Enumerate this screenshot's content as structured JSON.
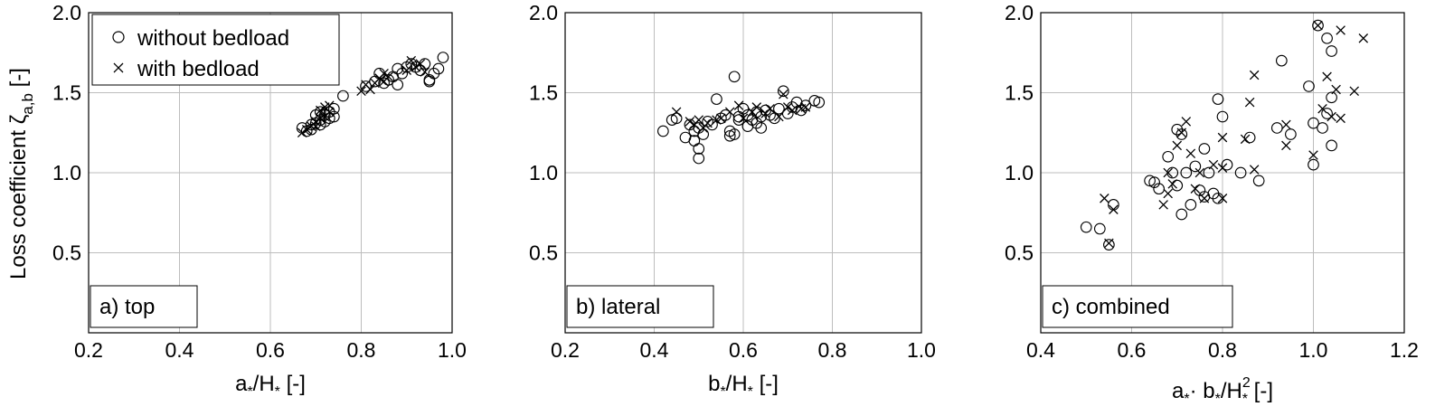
{
  "figure": {
    "ylabel": "Loss coefficient ζ",
    "ylabel_sub": "a,b",
    "ylabel_unit": " [-]",
    "legend": {
      "without_label": "without bedload",
      "with_label": "with bedload"
    }
  },
  "chart_data": [
    {
      "type": "scatter",
      "panel_label": "a) top",
      "xlabel": {
        "a": "a",
        "star1": "*",
        "slash": "/H",
        "star2": "*",
        "unit": " [-]"
      },
      "xlim": [
        0.2,
        1.0
      ],
      "ylim": [
        0,
        2.0
      ],
      "xticks": [
        "0.2",
        "0.4",
        "0.6",
        "0.8",
        "1.0"
      ],
      "yticks": [
        "0.5",
        "1.0",
        "1.5",
        "2.0"
      ],
      "grid": true,
      "legend": "top-left",
      "series": [
        {
          "name": "without bedload",
          "marker": "circle",
          "points": [
            [
              0.67,
              1.28
            ],
            [
              0.68,
              1.26
            ],
            [
              0.69,
              1.3
            ],
            [
              0.69,
              1.27
            ],
            [
              0.7,
              1.31
            ],
            [
              0.7,
              1.36
            ],
            [
              0.71,
              1.33
            ],
            [
              0.71,
              1.3
            ],
            [
              0.72,
              1.36
            ],
            [
              0.72,
              1.32
            ],
            [
              0.73,
              1.38
            ],
            [
              0.73,
              1.34
            ],
            [
              0.74,
              1.4
            ],
            [
              0.74,
              1.35
            ],
            [
              0.71,
              1.38
            ],
            [
              0.76,
              1.48
            ],
            [
              0.81,
              1.54
            ],
            [
              0.83,
              1.57
            ],
            [
              0.84,
              1.62
            ],
            [
              0.85,
              1.56
            ],
            [
              0.86,
              1.58
            ],
            [
              0.87,
              1.6
            ],
            [
              0.88,
              1.65
            ],
            [
              0.88,
              1.55
            ],
            [
              0.89,
              1.62
            ],
            [
              0.9,
              1.66
            ],
            [
              0.91,
              1.68
            ],
            [
              0.92,
              1.66
            ],
            [
              0.93,
              1.64
            ],
            [
              0.94,
              1.68
            ],
            [
              0.95,
              1.57
            ],
            [
              0.96,
              1.62
            ],
            [
              0.97,
              1.65
            ],
            [
              0.98,
              1.72
            ],
            [
              0.95,
              1.58
            ]
          ]
        },
        {
          "name": "with bedload",
          "marker": "x",
          "points": [
            [
              0.67,
              1.25
            ],
            [
              0.68,
              1.27
            ],
            [
              0.69,
              1.29
            ],
            [
              0.7,
              1.32
            ],
            [
              0.7,
              1.29
            ],
            [
              0.71,
              1.34
            ],
            [
              0.71,
              1.39
            ],
            [
              0.72,
              1.35
            ],
            [
              0.72,
              1.41
            ],
            [
              0.73,
              1.38
            ],
            [
              0.73,
              1.42
            ],
            [
              0.8,
              1.51
            ],
            [
              0.81,
              1.55
            ],
            [
              0.82,
              1.52
            ],
            [
              0.83,
              1.56
            ],
            [
              0.84,
              1.59
            ],
            [
              0.85,
              1.62
            ],
            [
              0.85,
              1.57
            ],
            [
              0.86,
              1.6
            ],
            [
              0.9,
              1.64
            ],
            [
              0.91,
              1.7
            ],
            [
              0.92,
              1.66
            ],
            [
              0.93,
              1.68
            ],
            [
              0.94,
              1.63
            ]
          ]
        }
      ]
    },
    {
      "type": "scatter",
      "panel_label": "b) lateral",
      "xlabel": {
        "a": "b",
        "star1": "*",
        "slash": "/H",
        "star2": "*",
        "unit": " [-]"
      },
      "xlim": [
        0.2,
        1.0
      ],
      "ylim": [
        0,
        2.0
      ],
      "xticks": [
        "0.2",
        "0.4",
        "0.6",
        "0.8",
        "1.0"
      ],
      "yticks": [
        "0.5",
        "1.0",
        "1.5",
        "2.0"
      ],
      "grid": true,
      "series": [
        {
          "name": "without bedload",
          "marker": "circle",
          "points": [
            [
              0.42,
              1.26
            ],
            [
              0.44,
              1.33
            ],
            [
              0.45,
              1.34
            ],
            [
              0.47,
              1.22
            ],
            [
              0.48,
              1.3
            ],
            [
              0.49,
              1.26
            ],
            [
              0.49,
              1.2
            ],
            [
              0.5,
              1.15
            ],
            [
              0.5,
              1.09
            ],
            [
              0.5,
              1.28
            ],
            [
              0.51,
              1.24
            ],
            [
              0.52,
              1.32
            ],
            [
              0.53,
              1.3
            ],
            [
              0.54,
              1.46
            ],
            [
              0.55,
              1.34
            ],
            [
              0.56,
              1.36
            ],
            [
              0.57,
              1.26
            ],
            [
              0.57,
              1.23
            ],
            [
              0.58,
              1.24
            ],
            [
              0.58,
              1.6
            ],
            [
              0.59,
              1.33
            ],
            [
              0.6,
              1.4
            ],
            [
              0.61,
              1.36
            ],
            [
              0.61,
              1.29
            ],
            [
              0.62,
              1.33
            ],
            [
              0.63,
              1.38
            ],
            [
              0.63,
              1.31
            ],
            [
              0.64,
              1.35
            ],
            [
              0.65,
              1.39
            ],
            [
              0.66,
              1.36
            ],
            [
              0.67,
              1.34
            ],
            [
              0.68,
              1.4
            ],
            [
              0.69,
              1.51
            ],
            [
              0.7,
              1.37
            ],
            [
              0.71,
              1.41
            ],
            [
              0.72,
              1.44
            ],
            [
              0.73,
              1.39
            ],
            [
              0.74,
              1.42
            ],
            [
              0.76,
              1.45
            ],
            [
              0.77,
              1.44
            ],
            [
              0.64,
              1.28
            ],
            [
              0.59,
              1.35
            ]
          ]
        },
        {
          "name": "with bedload",
          "marker": "x",
          "points": [
            [
              0.45,
              1.38
            ],
            [
              0.48,
              1.32
            ],
            [
              0.49,
              1.3
            ],
            [
              0.5,
              1.33
            ],
            [
              0.51,
              1.28
            ],
            [
              0.52,
              1.31
            ],
            [
              0.54,
              1.33
            ],
            [
              0.55,
              1.34
            ],
            [
              0.57,
              1.38
            ],
            [
              0.59,
              1.42
            ],
            [
              0.6,
              1.34
            ],
            [
              0.62,
              1.38
            ],
            [
              0.63,
              1.41
            ],
            [
              0.65,
              1.37
            ],
            [
              0.66,
              1.4
            ],
            [
              0.68,
              1.35
            ],
            [
              0.69,
              1.49
            ],
            [
              0.7,
              1.41
            ],
            [
              0.71,
              1.39
            ],
            [
              0.73,
              1.4
            ],
            [
              0.74,
              1.41
            ]
          ]
        }
      ]
    },
    {
      "type": "scatter",
      "panel_label": "c) combined",
      "xlabel": {
        "a": "a",
        "star1": "*",
        "mid": "· b",
        "star_mid": "*",
        "slash": "/H",
        "sup": "2",
        "star2": "*",
        "unit": " [-]"
      },
      "xlim": [
        0.4,
        1.2
      ],
      "ylim": [
        0,
        2.0
      ],
      "xticks": [
        "0.4",
        "0.6",
        "0.8",
        "1.0",
        "1.2"
      ],
      "yticks": [
        "0.5",
        "1.0",
        "1.5",
        "2.0"
      ],
      "grid": true,
      "series": [
        {
          "name": "without bedload",
          "marker": "circle",
          "points": [
            [
              0.5,
              0.66
            ],
            [
              0.53,
              0.65
            ],
            [
              0.55,
              0.55
            ],
            [
              0.56,
              0.8
            ],
            [
              0.64,
              0.95
            ],
            [
              0.65,
              0.94
            ],
            [
              0.66,
              0.9
            ],
            [
              0.68,
              1.1
            ],
            [
              0.69,
              1.0
            ],
            [
              0.7,
              1.27
            ],
            [
              0.7,
              0.92
            ],
            [
              0.71,
              1.24
            ],
            [
              0.71,
              0.74
            ],
            [
              0.72,
              1.0
            ],
            [
              0.73,
              0.8
            ],
            [
              0.74,
              1.04
            ],
            [
              0.75,
              0.89
            ],
            [
              0.76,
              1.15
            ],
            [
              0.76,
              0.85
            ],
            [
              0.77,
              1.0
            ],
            [
              0.78,
              0.87
            ],
            [
              0.79,
              0.84
            ],
            [
              0.79,
              1.46
            ],
            [
              0.8,
              1.35
            ],
            [
              0.81,
              1.05
            ],
            [
              0.84,
              1.0
            ],
            [
              0.86,
              1.22
            ],
            [
              0.88,
              0.95
            ],
            [
              0.92,
              1.28
            ],
            [
              0.93,
              1.7
            ],
            [
              0.95,
              1.24
            ],
            [
              0.99,
              1.54
            ],
            [
              1.0,
              1.05
            ],
            [
              1.0,
              1.31
            ],
            [
              1.01,
              1.92
            ],
            [
              1.02,
              1.28
            ],
            [
              1.03,
              1.84
            ],
            [
              1.04,
              1.47
            ],
            [
              1.04,
              1.76
            ],
            [
              1.04,
              1.17
            ],
            [
              1.03,
              1.37
            ]
          ]
        },
        {
          "name": "with bedload",
          "marker": "x",
          "points": [
            [
              0.54,
              0.84
            ],
            [
              0.56,
              0.77
            ],
            [
              0.55,
              0.56
            ],
            [
              0.67,
              0.8
            ],
            [
              0.68,
              0.87
            ],
            [
              0.68,
              1.0
            ],
            [
              0.69,
              0.93
            ],
            [
              0.7,
              1.17
            ],
            [
              0.71,
              1.25
            ],
            [
              0.72,
              1.32
            ],
            [
              0.73,
              1.12
            ],
            [
              0.74,
              0.9
            ],
            [
              0.75,
              1.0
            ],
            [
              0.76,
              0.84
            ],
            [
              0.78,
              1.05
            ],
            [
              0.8,
              1.22
            ],
            [
              0.8,
              1.03
            ],
            [
              0.8,
              0.84
            ],
            [
              0.85,
              1.21
            ],
            [
              0.86,
              1.44
            ],
            [
              0.87,
              1.61
            ],
            [
              0.87,
              1.02
            ],
            [
              0.94,
              1.3
            ],
            [
              0.94,
              1.17
            ],
            [
              1.0,
              1.11
            ],
            [
              1.01,
              1.92
            ],
            [
              1.02,
              1.4
            ],
            [
              1.03,
              1.6
            ],
            [
              1.04,
              1.35
            ],
            [
              1.05,
              1.52
            ],
            [
              1.06,
              1.89
            ],
            [
              1.06,
              1.34
            ],
            [
              1.09,
              1.51
            ],
            [
              1.11,
              1.84
            ]
          ]
        }
      ]
    }
  ]
}
